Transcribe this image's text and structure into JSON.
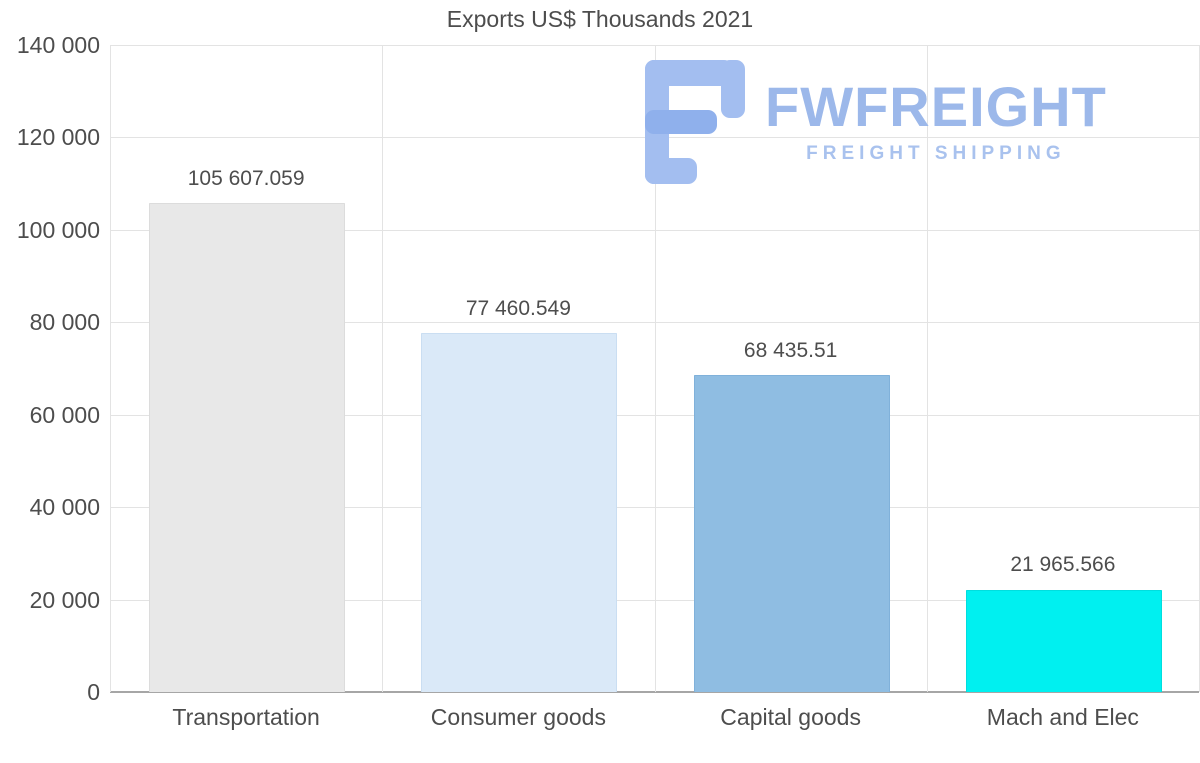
{
  "title": "Exports US$ Thousands 2021",
  "watermark": {
    "brand": "FWFREIGHT",
    "tagline": "FREIGHT SHIPPING",
    "color": "#9cb8ea"
  },
  "chart_data": {
    "type": "bar",
    "title": "Exports US$ Thousands 2021",
    "categories": [
      "Transportation",
      "Consumer goods",
      "Capital goods",
      "Mach and Elec"
    ],
    "values": [
      105607.059,
      77460.549,
      68435.51,
      21965.566
    ],
    "value_labels": [
      "105 607.059",
      "77 460.549",
      "68 435.51",
      "21 965.566"
    ],
    "bar_colors": [
      "#e8e8e8",
      "#dae9f8",
      "#8fbde2",
      "#00f0f0"
    ],
    "bar_border_colors": [
      "#dcdcdc",
      "#cadef2",
      "#80b1da",
      "#00dede"
    ],
    "xlabel": "",
    "ylabel": "",
    "ylim": [
      0,
      140000
    ],
    "ytick_interval": 20000,
    "ytick_labels": [
      "140 000",
      "120 000",
      "100 000",
      "80 000",
      "60 000",
      "40 000",
      "20 000",
      "0"
    ],
    "grid": true,
    "legend": false
  }
}
